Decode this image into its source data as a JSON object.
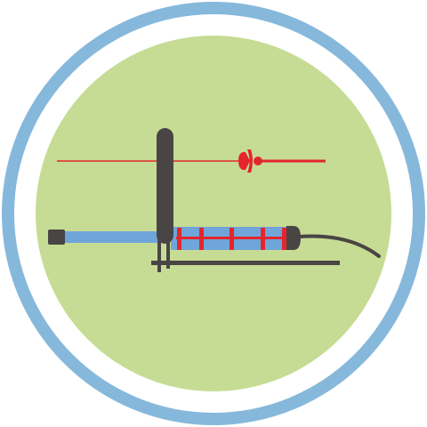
{
  "colors": {
    "background": "#ffffff",
    "outer_ring": "#86b8db",
    "inner_ring": "#ffffff",
    "disc": "#c6dc94",
    "tool_dark": "#4a4545",
    "rod_blue": "#6fa5d8",
    "accent_red": "#e3262c"
  },
  "icons": {
    "badge": "circular-badge-icon",
    "tool": "fishing-tool-icon"
  }
}
